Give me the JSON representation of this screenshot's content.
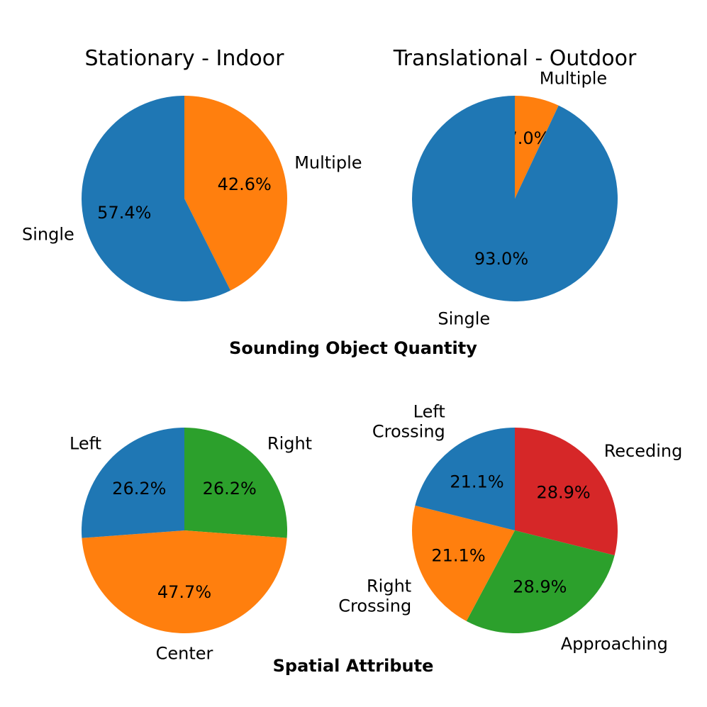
{
  "sections": {
    "quantity": "Sounding Object Quantity",
    "spatial": "Spatial Attribute"
  },
  "chart_data": [
    {
      "type": "pie",
      "title": "Stationary - Indoor",
      "start_angle_deg": 90,
      "direction": "clockwise",
      "slices": [
        {
          "label": [
            "Multiple"
          ],
          "value": 42.6,
          "pct_text": "42.6%",
          "color": "#ff7f0e"
        },
        {
          "label": [
            "Single"
          ],
          "value": 57.4,
          "pct_text": "57.4%",
          "color": "#1f77b4"
        }
      ]
    },
    {
      "type": "pie",
      "title": "Translational - Outdoor",
      "start_angle_deg": 90,
      "direction": "clockwise",
      "slices": [
        {
          "label": [
            "Multiple"
          ],
          "value": 7.0,
          "pct_text": "7.0%",
          "color": "#ff7f0e"
        },
        {
          "label": [
            "Single"
          ],
          "value": 93.0,
          "pct_text": "93.0%",
          "color": "#1f77b4"
        }
      ]
    },
    {
      "type": "pie",
      "title": "",
      "start_angle_deg": 90,
      "direction": "clockwise",
      "slices": [
        {
          "label": [
            "Right"
          ],
          "value": 26.2,
          "pct_text": "26.2%",
          "color": "#2ca02c"
        },
        {
          "label": [
            "Center"
          ],
          "value": 47.7,
          "pct_text": "47.7%",
          "color": "#ff7f0e"
        },
        {
          "label": [
            "Left"
          ],
          "value": 26.2,
          "pct_text": "26.2%",
          "color": "#1f77b4"
        }
      ]
    },
    {
      "type": "pie",
      "title": "",
      "start_angle_deg": 90,
      "direction": "clockwise",
      "slices": [
        {
          "label": [
            "Receding"
          ],
          "value": 28.9,
          "pct_text": "28.9%",
          "color": "#d62728"
        },
        {
          "label": [
            "Approaching"
          ],
          "value": 28.9,
          "pct_text": "28.9%",
          "color": "#2ca02c"
        },
        {
          "label": [
            "Right",
            "Crossing"
          ],
          "value": 21.1,
          "pct_text": "21.1%",
          "color": "#ff7f0e"
        },
        {
          "label": [
            "Left",
            "Crossing"
          ],
          "value": 21.1,
          "pct_text": "21.1%",
          "color": "#1f77b4"
        }
      ]
    }
  ]
}
